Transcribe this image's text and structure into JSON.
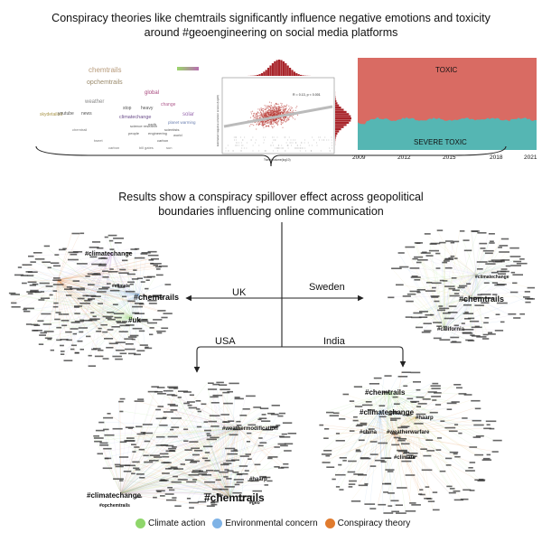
{
  "headline": {
    "line1": "Conspiracy theories like chemtrails significantly influence negative emotions and toxicity",
    "line2": "around #geoengineering on social media platforms"
  },
  "wordcloud": {
    "words": [
      "chemtrails",
      "opchemtrails",
      "global",
      "weather",
      "change",
      "climatechange",
      "solar",
      "planet warming",
      "skydetailed",
      "youtube",
      "news",
      "stop",
      "heavy",
      "science research",
      "engineering",
      "scientists",
      "earth",
      "world",
      "carbon",
      "people",
      "tweet",
      "chemtrail",
      "carbon",
      "sun",
      "bill gates"
    ]
  },
  "scatter": {
    "stat": "R = 0.13, p < 0.001",
    "xlabel": "Tweet volume(log10)",
    "ylabel": "Estimated negative emotion scores (log10)"
  },
  "toxicity": {
    "top_label": "TOXIC",
    "bottom_label": "SEVERE TOXIC",
    "years": [
      "2009",
      "2012",
      "2015",
      "2018",
      "2021"
    ],
    "colors": {
      "toxic": "#d96b63",
      "severe": "#55b6b3"
    }
  },
  "middle": {
    "line1": "Results show a conspiracy spillover effect across geopolitical",
    "line2": "boundaries influencing online communication"
  },
  "flow": {
    "uk": "UK",
    "sweden": "Sweden",
    "usa": "USA",
    "india": "India"
  },
  "networks": {
    "uk": {
      "tags": [
        "#climatechange",
        "#chemtrails",
        "#uk",
        "#climate"
      ]
    },
    "sweden": {
      "tags": [
        "#chemtrails",
        "#climatechange",
        "#california"
      ]
    },
    "usa": {
      "tags": [
        "#chemtrails",
        "#climatechange",
        "#opchemtrails",
        "#weathermodification",
        "#haarp",
        "#geo"
      ]
    },
    "india": {
      "tags": [
        "#chemtrails",
        "#climatechange",
        "#china",
        "#weatherwarfare",
        "#haarp",
        "#climate"
      ]
    }
  },
  "legend": {
    "items": [
      {
        "label": "Climate action",
        "color": "#8fd66b"
      },
      {
        "label": "Environmental concern",
        "color": "#7fb3e6"
      },
      {
        "label": "Conspiracy theory",
        "color": "#e07b2e"
      }
    ]
  }
}
